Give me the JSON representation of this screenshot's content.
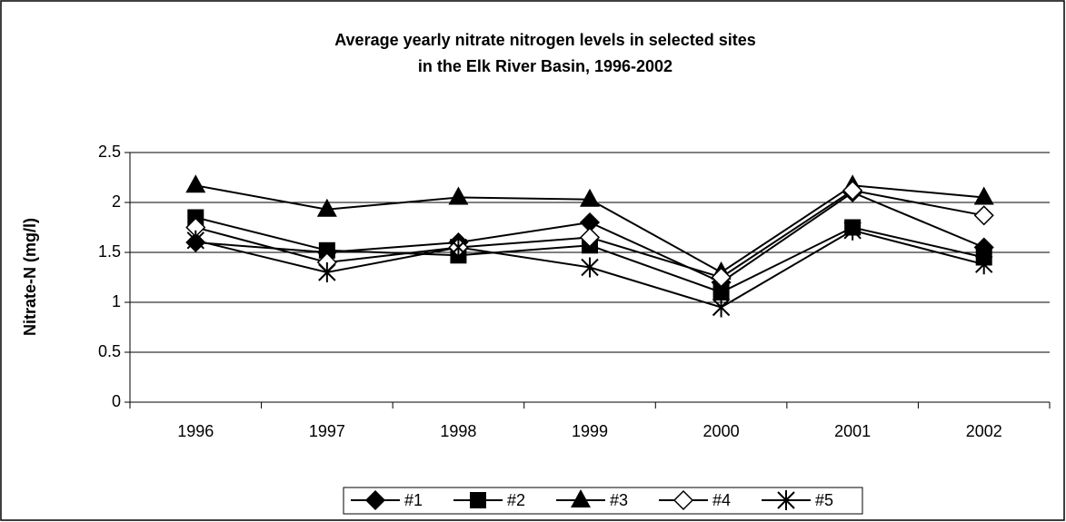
{
  "chart_data": {
    "type": "line",
    "title": [
      "Average yearly nitrate nitrogen levels in selected sites",
      "in the Elk River Basin, 1996-2002"
    ],
    "y_label": "Nitrate-N (mg/l)",
    "categories": [
      "1996",
      "1997",
      "1998",
      "1999",
      "2000",
      "2001",
      "2002"
    ],
    "series": [
      {
        "name": "#1",
        "color": "#000000",
        "marker": "diamond",
        "values": [
          1.6,
          1.5,
          1.6,
          1.8,
          1.2,
          2.1,
          1.55
        ]
      },
      {
        "name": "#2",
        "color": "#000000",
        "marker": "square",
        "values": [
          1.85,
          1.52,
          1.47,
          1.57,
          1.1,
          1.75,
          1.45
        ]
      },
      {
        "name": "#3",
        "color": "#000000",
        "marker": "triangle",
        "values": [
          2.17,
          1.93,
          2.05,
          2.03,
          1.3,
          2.17,
          2.05
        ]
      },
      {
        "name": "#4",
        "color": "#000000",
        "marker": "open-diamond",
        "values": [
          1.75,
          1.4,
          1.55,
          1.65,
          1.25,
          2.12,
          1.87
        ]
      },
      {
        "name": "#5",
        "color": "#000000",
        "marker": "star",
        "values": [
          1.62,
          1.3,
          1.55,
          1.35,
          0.95,
          1.72,
          1.38
        ]
      }
    ],
    "ylim": [
      0,
      2.5
    ],
    "yticks": [
      0,
      0.5,
      1,
      1.5,
      2,
      2.5
    ],
    "grid": true,
    "legend": "bottom"
  }
}
